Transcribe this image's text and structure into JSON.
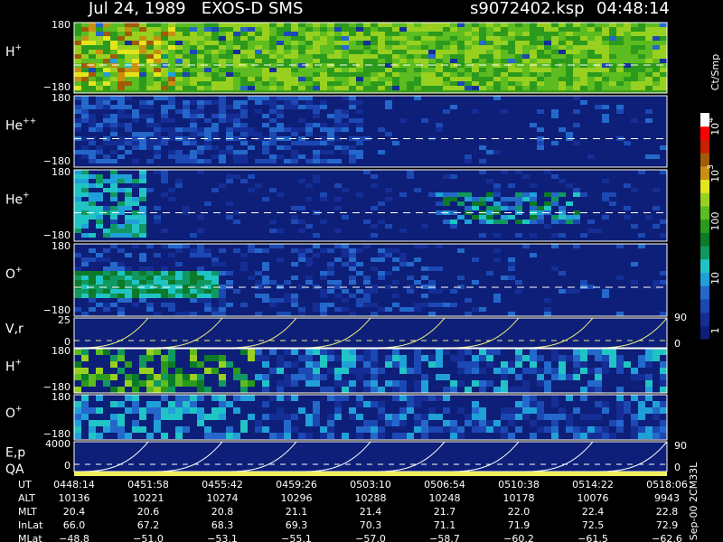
{
  "header": {
    "title": "Jul 24, 1989   EXOS-D SMS",
    "file": "s9072402.ksp",
    "time": "04:48:14"
  },
  "panels": [
    {
      "label": {
        "base": "H",
        "sup": "+"
      },
      "ticks": [
        "180",
        "−180"
      ]
    },
    {
      "label": {
        "base": "He",
        "sup": "++"
      },
      "ticks": [
        "180",
        "−180"
      ]
    },
    {
      "label": {
        "base": "He",
        "sup": "+"
      },
      "ticks": [
        "180",
        "−180"
      ]
    },
    {
      "label": {
        "base": "O",
        "sup": "+"
      },
      "ticks": [
        "180",
        "−180"
      ]
    },
    {
      "label": {
        "base": "V,r",
        "sup": ""
      },
      "ticks": [
        "25",
        "0"
      ],
      "right_ticks": [
        "90",
        "0"
      ]
    },
    {
      "label": {
        "base": "H",
        "sup": "+"
      },
      "ticks": [
        "180",
        "−180"
      ]
    },
    {
      "label": {
        "base": "O",
        "sup": "+"
      },
      "ticks": [
        "180",
        "−180"
      ]
    },
    {
      "label": {
        "base": "E,p",
        "sup": ""
      },
      "ticks": [
        "4000",
        "0"
      ],
      "right_ticks": [
        "90",
        "0"
      ]
    }
  ],
  "qa_label": "QA",
  "colorbar": {
    "title": "Ct/Smp",
    "ticks": [
      {
        "base": "10",
        "sup": "4"
      },
      {
        "base": "10",
        "sup": "3"
      },
      {
        "base": "100",
        "sup": ""
      },
      {
        "base": "10",
        "sup": ""
      },
      {
        "base": "1",
        "sup": ""
      }
    ]
  },
  "table": {
    "rows": [
      {
        "label": "UT",
        "values": [
          "0448:14",
          "0451:58",
          "0455:42",
          "0459:26",
          "0503:10",
          "0506:54",
          "0510:38",
          "0514:22",
          "0518:06"
        ]
      },
      {
        "label": "ALT",
        "values": [
          "10136",
          "10221",
          "10274",
          "10296",
          "10288",
          "10248",
          "10178",
          "10076",
          "9943"
        ]
      },
      {
        "label": "MLT",
        "values": [
          "20.4",
          "20.6",
          "20.8",
          "21.1",
          "21.4",
          "21.7",
          "22.0",
          "22.4",
          "22.8"
        ]
      },
      {
        "label": "InLat",
        "values": [
          "66.0",
          "67.2",
          "68.3",
          "69.3",
          "70.3",
          "71.1",
          "71.9",
          "72.5",
          "72.9"
        ]
      },
      {
        "label": "MLat",
        "values": [
          "−48.8",
          "−51.0",
          "−53.1",
          "−55.1",
          "−57.0",
          "−58.7",
          "−60.2",
          "−61.5",
          "−62.6"
        ]
      }
    ]
  },
  "footnote": "Sep-00 2CM33L"
}
